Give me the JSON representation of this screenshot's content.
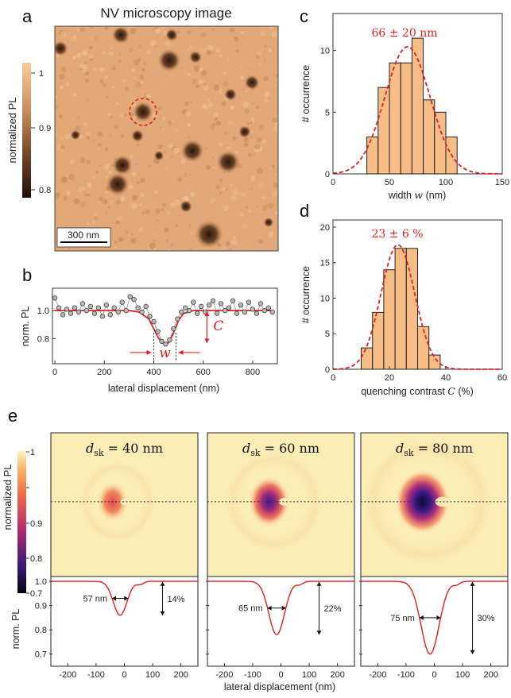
{
  "panels": {
    "a": {
      "letter": "a",
      "title": "NV microscopy image",
      "colorbar_label": "normalized  PL",
      "colorbar_ticks": [
        "1",
        "0.9",
        "0.8"
      ],
      "scalebar_label": "300 nm",
      "colors": {
        "low": "#2a160c",
        "mid": "#a0663c",
        "high": "#f3c593"
      }
    },
    "b": {
      "letter": "b",
      "ylabel": "norm. PL",
      "xlabel": "lateral displacement (nm)",
      "width_symbol": "w",
      "contrast_symbol": "C"
    },
    "c": {
      "letter": "c",
      "annotation": "66 ± 20 nm"
    },
    "d": {
      "letter": "d",
      "annotation": "23 ± 6 %"
    },
    "e": {
      "letter": "e",
      "colorbar_label": "normalized  PL",
      "colorbar_ticks": [
        "1",
        "0.9",
        "0.8",
        "0.7"
      ],
      "sims": [
        {
          "label": "d_sk = 40 nm",
          "width_label": "57 nm",
          "contrast_label": "14%"
        },
        {
          "label": "d_sk = 60 nm",
          "width_label": "65 nm",
          "contrast_label": "22%"
        },
        {
          "label": "d_sk = 80 nm",
          "width_label": "75 nm",
          "contrast_label": "30%"
        }
      ],
      "ylabel": "norm. PL",
      "xlabel": "lateral displacement (nm)"
    }
  },
  "chart_data": [
    {
      "id": "b",
      "type": "scatter",
      "xlabel": "lateral displacement (nm)",
      "ylabel": "norm. PL",
      "xlim": [
        -10,
        900
      ],
      "ylim": [
        0.62,
        1.16
      ],
      "xticks": [
        0,
        200,
        400,
        600,
        800
      ],
      "yticks": [
        0.8,
        1.0
      ],
      "series": [
        {
          "x": [
            0,
            16,
            32,
            48,
            64,
            80,
            96,
            112,
            128,
            144,
            160,
            176,
            192,
            208,
            224,
            240,
            256,
            272,
            288,
            304,
            320,
            336,
            352,
            368,
            384,
            400,
            416,
            432,
            448,
            464,
            480,
            496,
            512,
            528,
            544,
            560,
            576,
            592,
            608,
            624,
            640,
            656,
            672,
            688,
            704,
            720,
            736,
            752,
            768,
            784,
            800,
            816,
            832,
            848,
            864,
            880
          ],
          "y": [
            1.09,
            1.02,
            0.97,
            1.01,
            0.98,
            1.02,
            0.99,
            1.05,
            1.0,
            1.03,
            0.98,
            1.02,
            0.96,
            1.04,
            0.97,
            1.02,
            0.99,
            1.06,
            1.0,
            1.1,
            1.08,
            1.02,
            0.99,
            1.03,
            0.96,
            0.92,
            0.85,
            0.78,
            0.76,
            0.79,
            0.87,
            0.94,
            0.99,
            1.02,
            1.0,
            1.06,
            0.98,
            1.03,
            0.99,
            1.04,
            1.07,
            0.98,
            1.05,
            1.0,
            1.02,
            1.07,
            0.98,
            1.04,
            0.99,
            1.06,
            1.01,
            0.98,
            1.05,
            1.0,
            1.02,
            0.99
          ]
        },
        {
          "type": "line",
          "x": [
            0,
            100,
            200,
            300,
            340,
            380,
            400,
            420,
            440,
            450,
            460,
            480,
            500,
            520,
            560,
            600,
            700,
            800,
            880
          ],
          "y": [
            1.0,
            1.0,
            1.0,
            1.0,
            0.99,
            0.94,
            0.87,
            0.8,
            0.77,
            0.76,
            0.77,
            0.84,
            0.93,
            0.98,
            1.0,
            1.0,
            1.0,
            1.0,
            1.0
          ]
        }
      ]
    },
    {
      "id": "c",
      "type": "bar",
      "xlabel": "width w (nm)",
      "ylabel": "# occurrence",
      "xlim": [
        0,
        150
      ],
      "ylim": [
        0,
        13
      ],
      "xticks": [
        0,
        50,
        100,
        150
      ],
      "yticks": [
        0,
        5,
        10
      ],
      "bin_edges": [
        30,
        40,
        50,
        60,
        70,
        80,
        90,
        100,
        110
      ],
      "values": [
        3,
        7,
        9,
        9,
        11,
        6,
        5,
        3
      ],
      "fit": {
        "mean": 66,
        "sigma": 20,
        "peak": 10.3
      }
    },
    {
      "id": "d",
      "type": "bar",
      "xlabel": "quenching contrast C (%)",
      "ylabel": "# occurrence",
      "xlim": [
        0,
        60
      ],
      "ylim": [
        0,
        21
      ],
      "xticks": [
        0,
        20,
        40,
        60
      ],
      "yticks": [
        0,
        5,
        10,
        15,
        20
      ],
      "bin_edges": [
        10,
        14,
        18,
        22,
        26,
        30,
        34,
        38
      ],
      "values": [
        3,
        8,
        14,
        17,
        17,
        6,
        2
      ],
      "fit": {
        "mean": 23,
        "sigma": 6,
        "peak": 17.5
      }
    },
    {
      "id": "e-profiles",
      "type": "line",
      "xlabel": "lateral displacement (nm)",
      "ylabel": "norm. PL",
      "xlim": [
        -260,
        260
      ],
      "ylim": [
        0.65,
        1.02
      ],
      "xticks": [
        -200,
        -100,
        0,
        100,
        200
      ],
      "yticks": [
        0.7,
        0.8,
        0.9,
        1.0
      ],
      "series": [
        {
          "name": "d_sk = 40 nm",
          "center": -15,
          "depth": 0.14,
          "width": 57
        },
        {
          "name": "d_sk = 60 nm",
          "center": -15,
          "depth": 0.22,
          "width": 65
        },
        {
          "name": "d_sk = 80 nm",
          "center": -15,
          "depth": 0.3,
          "width": 75
        }
      ]
    }
  ]
}
